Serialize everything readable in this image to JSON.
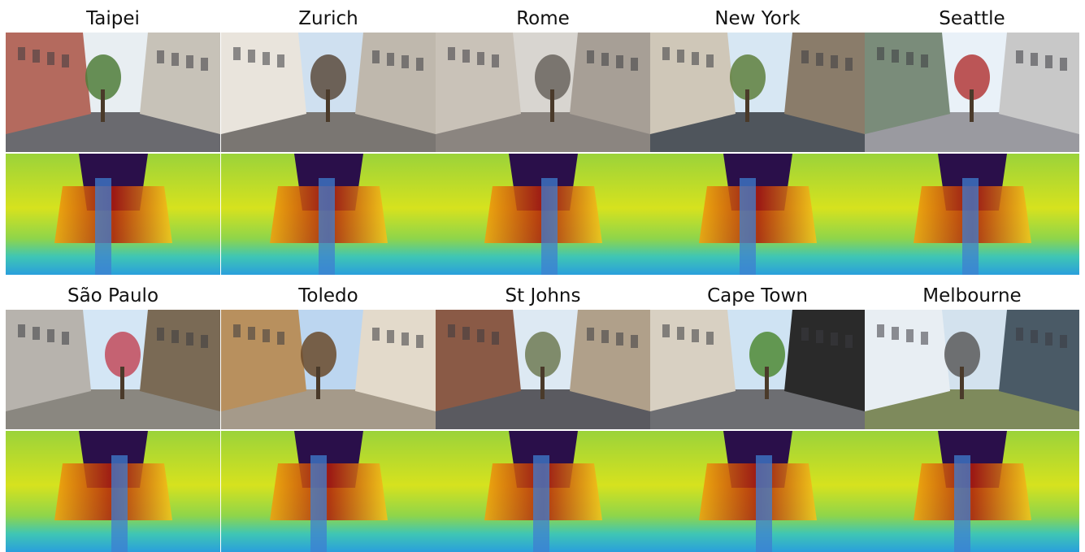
{
  "figure": {
    "rows": [
      {
        "cities": [
          {
            "name": "Taipei",
            "sky": "#e8eef2",
            "ground": "#6a6a6f",
            "wall1": "#b46a5e",
            "wall2": "#c7c2b8",
            "accent": "#4f7d3a"
          },
          {
            "name": "Zurich",
            "sky": "#cfe0f0",
            "ground": "#7a7672",
            "wall1": "#e9e4dc",
            "wall2": "#bfb8ad",
            "accent": "#5a4a3c"
          },
          {
            "name": "Rome",
            "sky": "#d8d5d0",
            "ground": "#8b8580",
            "wall1": "#c9c2b8",
            "wall2": "#a79f96",
            "accent": "#6a645e"
          },
          {
            "name": "New York",
            "sky": "#d7e7f3",
            "ground": "#4f555c",
            "wall1": "#cfc7b8",
            "wall2": "#8a7c6a",
            "accent": "#5e7f3c"
          },
          {
            "name": "Seattle",
            "sky": "#e9f1f8",
            "ground": "#9a9aa0",
            "wall1": "#7a8c7a",
            "wall2": "#c8c8c8",
            "accent": "#b33a3a"
          }
        ]
      },
      {
        "cities": [
          {
            "name": "São Paulo",
            "sky": "#d4e6f5",
            "ground": "#8a8780",
            "wall1": "#b7b3ad",
            "wall2": "#7a6a55",
            "accent": "#c24a5a"
          },
          {
            "name": "Toledo",
            "sky": "#bcd6f0",
            "ground": "#a59a8a",
            "wall1": "#b8905e",
            "wall2": "#e3dacb",
            "accent": "#6a4a2a"
          },
          {
            "name": "St Johns",
            "sky": "#dde9f3",
            "ground": "#5a5a60",
            "wall1": "#8a5a46",
            "wall2": "#b0a08a",
            "accent": "#6f7a52"
          },
          {
            "name": "Cape Town",
            "sky": "#cfe3f3",
            "ground": "#6d6e72",
            "wall1": "#d8d0c2",
            "wall2": "#2a2a2a",
            "accent": "#4f8a34"
          },
          {
            "name": "Melbourne",
            "sky": "#d3e2ee",
            "ground": "#7e8a5c",
            "wall1": "#e8eef3",
            "wall2": "#4a5a66",
            "accent": "#5a5a5a"
          }
        ]
      }
    ]
  }
}
